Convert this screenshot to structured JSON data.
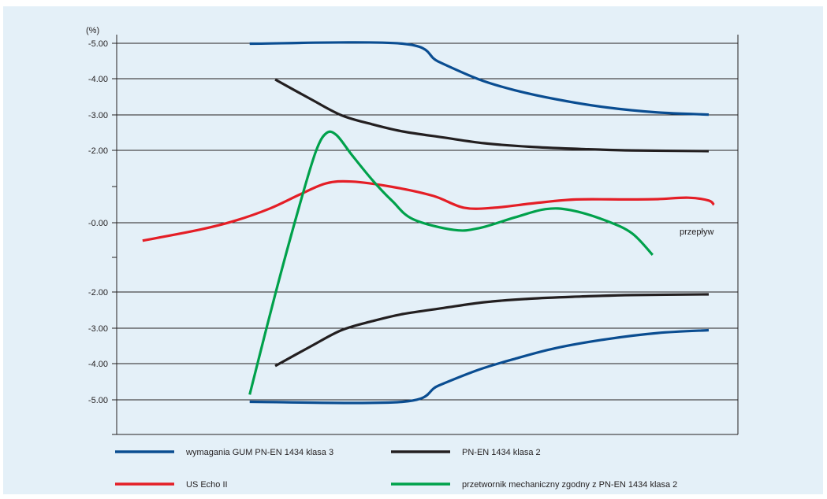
{
  "chart_data": {
    "type": "line",
    "ylabel": "(%)",
    "y_tick_labels": [
      "-5.00",
      "-4.00",
      "-3.00",
      "-2.00",
      "-0.00",
      "-2.00",
      "-3.00",
      "-4.00",
      "-5.00"
    ],
    "xlabel": "",
    "x_annotation": "przepływ",
    "grid": true,
    "legend_placement": "bottom",
    "series": [
      {
        "name": "wymagania GUM PN-EN 1434 klasa 3",
        "color": "#0a4d91",
        "segments": [
          [
            [
              0.1,
              5.0
            ],
            [
              0.4,
              5.0
            ],
            [
              0.47,
              4.5
            ],
            [
              0.55,
              4.0
            ],
            [
              0.62,
              3.7
            ],
            [
              0.7,
              3.45
            ],
            [
              0.8,
              3.22
            ],
            [
              0.9,
              3.08
            ],
            [
              1.0,
              3.02
            ]
          ],
          [
            [
              0.1,
              -5.0
            ],
            [
              0.4,
              -5.0
            ],
            [
              0.47,
              -4.55
            ],
            [
              0.55,
              -4.1
            ],
            [
              0.62,
              -3.8
            ],
            [
              0.7,
              -3.5
            ],
            [
              0.8,
              -3.25
            ],
            [
              0.9,
              -3.08
            ],
            [
              1.0,
              -3.0
            ]
          ]
        ]
      },
      {
        "name": "PN-EN 1434 klasa 2",
        "color": "#231f20",
        "segments": [
          [
            [
              0.15,
              4.0
            ],
            [
              0.22,
              3.45
            ],
            [
              0.28,
              3.0
            ],
            [
              0.34,
              2.75
            ],
            [
              0.4,
              2.55
            ],
            [
              0.48,
              2.38
            ],
            [
              0.56,
              2.22
            ],
            [
              0.65,
              2.12
            ],
            [
              0.75,
              2.06
            ],
            [
              0.85,
              2.02
            ],
            [
              1.0,
              2.0
            ]
          ],
          [
            [
              0.15,
              -4.0
            ],
            [
              0.22,
              -3.45
            ],
            [
              0.28,
              -3.0
            ],
            [
              0.34,
              -2.75
            ],
            [
              0.4,
              -2.55
            ],
            [
              0.48,
              -2.38
            ],
            [
              0.56,
              -2.22
            ],
            [
              0.65,
              -2.12
            ],
            [
              0.75,
              -2.06
            ],
            [
              0.85,
              -2.02
            ],
            [
              1.0,
              -2.0
            ]
          ]
        ]
      },
      {
        "name": "US Echo II",
        "color": "#e41e26",
        "segments": [
          [
            [
              -0.11,
              -0.5
            ],
            [
              0.0,
              -0.2
            ],
            [
              0.07,
              0.05
            ],
            [
              0.14,
              0.4
            ],
            [
              0.2,
              0.8
            ],
            [
              0.25,
              1.1
            ],
            [
              0.3,
              1.15
            ],
            [
              0.38,
              1.0
            ],
            [
              0.46,
              0.75
            ],
            [
              0.52,
              0.42
            ],
            [
              0.58,
              0.42
            ],
            [
              0.66,
              0.55
            ],
            [
              0.74,
              0.65
            ],
            [
              0.84,
              0.65
            ],
            [
              0.9,
              0.66
            ],
            [
              0.96,
              0.7
            ],
            [
              1.0,
              0.62
            ],
            [
              1.01,
              0.5
            ]
          ]
        ]
      },
      {
        "name": "przetwornik mechaniczny zgodny z PN-EN 1434 klasa 2",
        "color": "#00a14b",
        "segments": [
          [
            [
              0.1,
              -4.8
            ],
            [
              0.15,
              -2.0
            ],
            [
              0.2,
              0.6
            ],
            [
              0.23,
              2.0
            ],
            [
              0.25,
              2.5
            ],
            [
              0.27,
              2.45
            ],
            [
              0.3,
              1.9
            ],
            [
              0.34,
              1.2
            ],
            [
              0.38,
              0.6
            ],
            [
              0.42,
              0.1
            ],
            [
              0.5,
              -0.2
            ],
            [
              0.55,
              -0.15
            ],
            [
              0.62,
              0.15
            ],
            [
              0.68,
              0.38
            ],
            [
              0.73,
              0.35
            ],
            [
              0.8,
              0.05
            ],
            [
              0.85,
              -0.3
            ],
            [
              0.89,
              -0.9
            ]
          ]
        ]
      }
    ]
  }
}
